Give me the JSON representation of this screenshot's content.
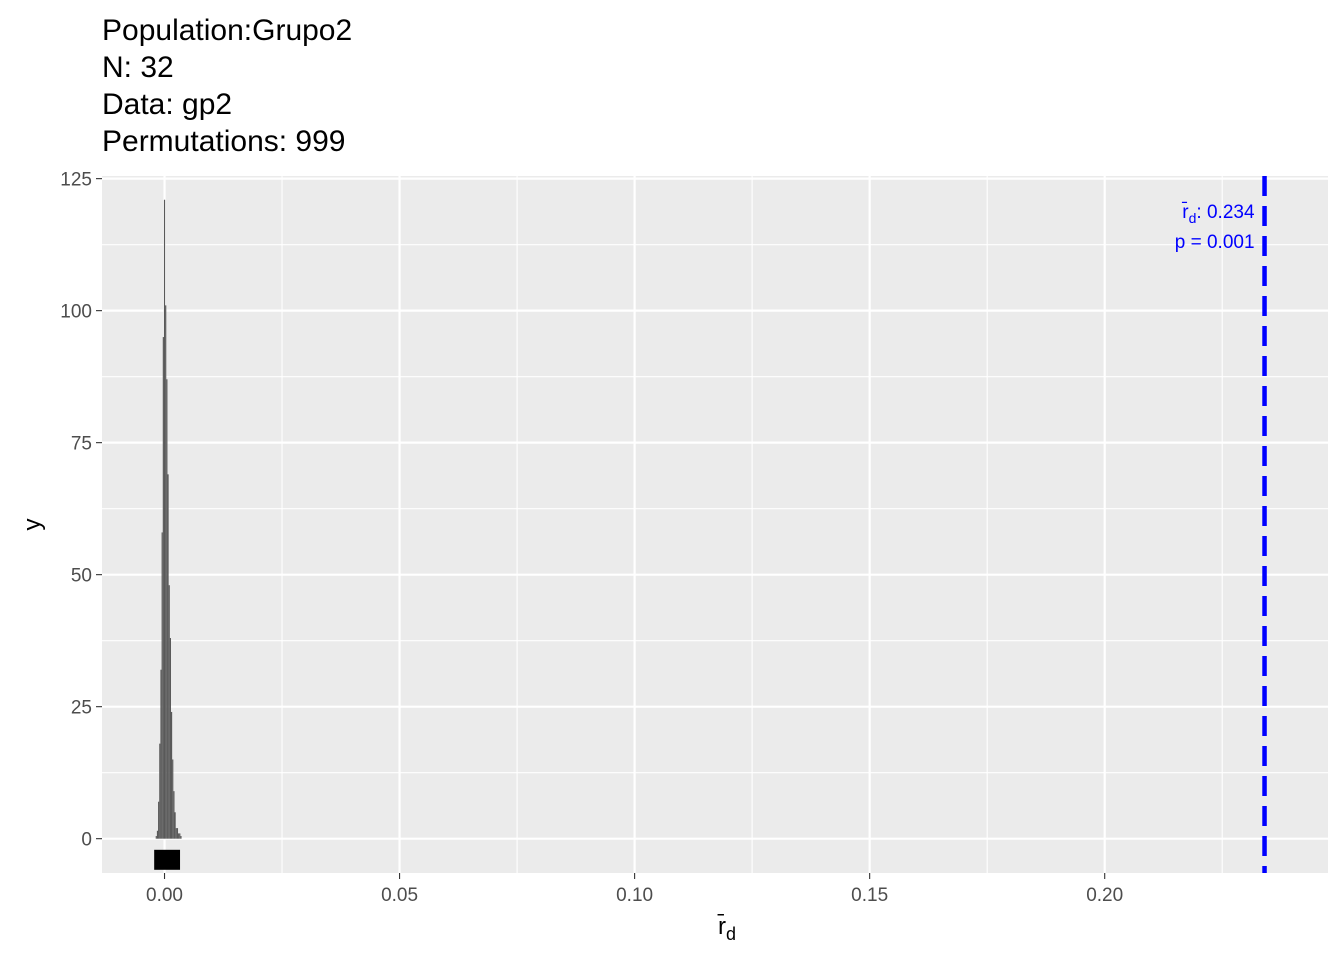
{
  "title_lines": [
    "Population:Grupo2",
    "N: 32",
    "Data: gp2",
    "Permutations: 999"
  ],
  "chart_data": {
    "type": "bar",
    "title": "Population:Grupo2 / N: 32 / Data: gp2 / Permutations: 999",
    "xlabel": "r̄d",
    "ylabel": "y",
    "xlim": [
      -0.0133,
      0.2475
    ],
    "ylim": [
      -6.5,
      125.5
    ],
    "x_ticks": [
      0.0,
      0.05,
      0.1,
      0.15,
      0.2
    ],
    "x_tick_labels": [
      "0.00",
      "0.05",
      "0.10",
      "0.15",
      "0.20"
    ],
    "y_ticks": [
      0,
      25,
      50,
      75,
      100,
      125
    ],
    "y_tick_labels": [
      "0",
      "25",
      "50",
      "75",
      "100",
      "125"
    ],
    "grid": true,
    "bin_width": 0.00025,
    "bins": [
      {
        "x": -0.00175,
        "y": 0.5
      },
      {
        "x": -0.0015,
        "y": 1.5
      },
      {
        "x": -0.00125,
        "y": 7
      },
      {
        "x": -0.001,
        "y": 18
      },
      {
        "x": -0.00075,
        "y": 32
      },
      {
        "x": -0.0005,
        "y": 58
      },
      {
        "x": -0.00025,
        "y": 95
      },
      {
        "x": 0.0,
        "y": 121
      },
      {
        "x": 0.00025,
        "y": 101
      },
      {
        "x": 0.0005,
        "y": 87
      },
      {
        "x": 0.00075,
        "y": 69
      },
      {
        "x": 0.001,
        "y": 48
      },
      {
        "x": 0.00125,
        "y": 38
      },
      {
        "x": 0.0015,
        "y": 24
      },
      {
        "x": 0.00175,
        "y": 15
      },
      {
        "x": 0.002,
        "y": 9
      },
      {
        "x": 0.00225,
        "y": 5
      },
      {
        "x": 0.0025,
        "y": 2
      },
      {
        "x": 0.00275,
        "y": 2
      },
      {
        "x": 0.003,
        "y": 1
      },
      {
        "x": 0.00325,
        "y": 1
      },
      {
        "x": 0.0035,
        "y": 0.5
      }
    ],
    "rug": {
      "from": -0.0022,
      "to": 0.0033,
      "y": -4
    },
    "observed": {
      "value": 0.234,
      "color": "#0000FF",
      "label_stat_symbol": "r̄d",
      "label_stat": ": 0.234",
      "label_p": "p = 0.001"
    },
    "colors": {
      "panel": "#EBEBEB",
      "grid_major": "#FFFFFF",
      "bars": "#595959",
      "rug": "#000000",
      "axis_text": "#4D4D4D"
    }
  }
}
